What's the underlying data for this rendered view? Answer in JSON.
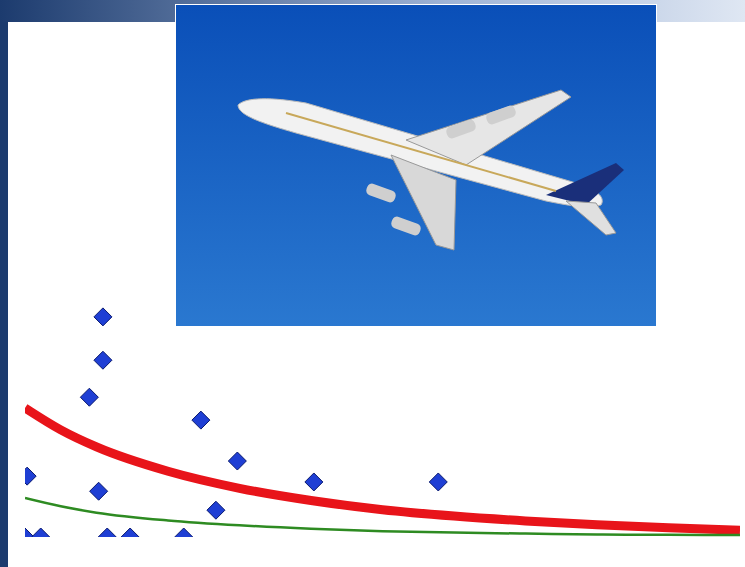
{
  "chart_data": {
    "type": "scatter",
    "xlim": [
      0,
      100
    ],
    "ylim": [
      0,
      100
    ],
    "tick_labels": false,
    "grid": false,
    "series": [
      {
        "type": "scatter",
        "marker": "diamond",
        "color": "#1f3fd4",
        "x": [
          10.9,
          10.9,
          9.0,
          24.6,
          29.7,
          0.3,
          10.3,
          40.4,
          57.8,
          26.7,
          0,
          2.2,
          11.5,
          14.7,
          22.2
        ],
        "values": [
          45.2,
          36.3,
          28.7,
          24.0,
          15.6,
          12.5,
          9.4,
          11.3,
          11.3,
          5.5,
          0,
          0,
          0,
          0,
          0
        ]
      },
      {
        "type": "line",
        "line_style": "thick",
        "color": "#e8141a",
        "x": [
          0,
          5,
          10,
          20,
          30,
          40,
          50,
          60,
          70,
          80,
          90,
          100
        ],
        "values": [
          26.5,
          22.0,
          18.5,
          13.5,
          10.0,
          7.5,
          5.6,
          4.3,
          3.3,
          2.5,
          1.9,
          1.4
        ]
      },
      {
        "type": "line",
        "line_style": "thin",
        "color": "#2e8b22",
        "x": [
          0,
          5,
          10,
          20,
          30,
          40,
          50,
          60,
          70,
          80,
          90,
          100
        ],
        "values": [
          8.0,
          6.3,
          5.0,
          3.4,
          2.4,
          1.7,
          1.2,
          0.9,
          0.7,
          0.5,
          0.45,
          0.4
        ]
      }
    ]
  }
}
